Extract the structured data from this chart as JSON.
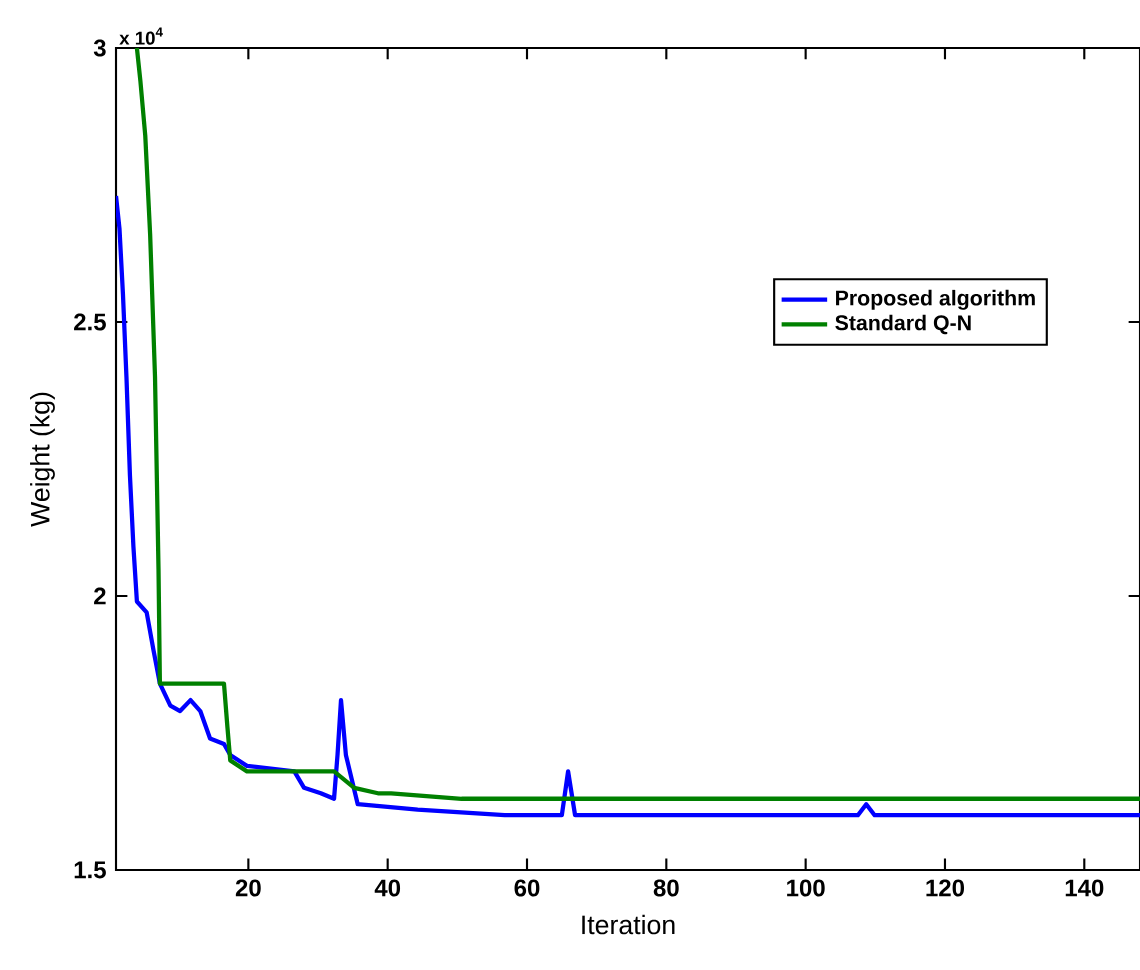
{
  "chart_data": {
    "type": "line",
    "xlabel": "Iteration",
    "ylabel": "Weight (kg)",
    "annotations": [
      "x 10$^{4}$"
    ],
    "xlim": [
      1,
      148
    ],
    "ylim": [
      1.5,
      3
    ],
    "xticks": [
      20,
      40,
      60,
      80,
      100,
      120,
      140
    ],
    "yticks": [
      1.5,
      2,
      2.5,
      3
    ],
    "legend": "top right",
    "grid": false,
    "marker": "none",
    "line_style": "solid",
    "series": [
      {
        "name": "Proposed algorithm",
        "color": "#0000ff",
        "x": [
          1,
          1.5,
          2,
          2.5,
          3,
          3.5,
          4,
          5.4,
          6.4,
          7.3,
          8.8,
          10.2,
          11.7,
          13.1,
          14.5,
          16.5,
          17.4,
          19.8,
          26.6,
          28,
          30.4,
          32.3,
          32.8,
          33.3,
          34,
          35.7,
          44.3,
          56.8,
          65,
          65.9,
          66.9,
          107.5,
          108.7,
          109.9,
          148
        ],
        "values": [
          2.73,
          2.67,
          2.55,
          2.4,
          2.22,
          2.09,
          1.99,
          1.97,
          1.9,
          1.84,
          1.8,
          1.79,
          1.81,
          1.79,
          1.74,
          1.73,
          1.71,
          1.69,
          1.68,
          1.65,
          1.64,
          1.63,
          1.71,
          1.81,
          1.71,
          1.62,
          1.61,
          1.6,
          1.6,
          1.68,
          1.6,
          1.6,
          1.62,
          1.6,
          1.6
        ]
      },
      {
        "name": "Standard Q-N",
        "color": "#008000",
        "x": [
          4,
          4.5,
          5.2,
          5.9,
          6.6,
          7.1,
          7.3,
          16.5,
          17,
          17.4,
          19.8,
          32.3,
          35.2,
          38.6,
          40.5,
          50.6,
          148
        ],
        "values": [
          3.0,
          2.94,
          2.84,
          2.66,
          2.4,
          2.05,
          1.84,
          1.84,
          1.76,
          1.7,
          1.68,
          1.68,
          1.65,
          1.64,
          1.64,
          1.63,
          1.63
        ]
      }
    ]
  }
}
